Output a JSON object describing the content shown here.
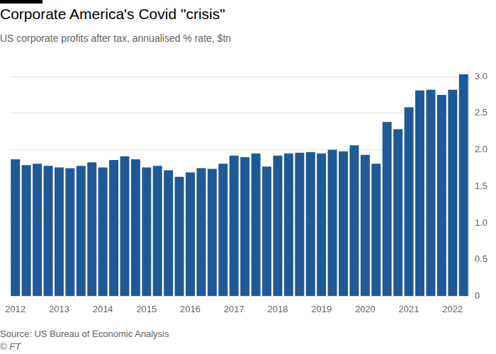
{
  "chart_data": {
    "type": "bar",
    "title": "Corporate America's Covid \"crisis\"",
    "subtitle": "US corporate profits after tax, annualised % rate, $tn",
    "source": "Source: US Bureau of Economic Analysis",
    "credit": "© FT",
    "categories": [
      "2012",
      null,
      null,
      null,
      "2013",
      null,
      null,
      null,
      "2014",
      null,
      null,
      null,
      "2015",
      null,
      null,
      null,
      "2016",
      null,
      null,
      null,
      "2017",
      null,
      null,
      null,
      "2018",
      null,
      null,
      null,
      "2019",
      null,
      null,
      null,
      "2020",
      null,
      null,
      null,
      "2021",
      null,
      null,
      null,
      "2022",
      null
    ],
    "values": [
      1.87,
      1.79,
      1.81,
      1.78,
      1.76,
      1.75,
      1.78,
      1.83,
      1.76,
      1.86,
      1.91,
      1.87,
      1.76,
      1.78,
      1.72,
      1.63,
      1.69,
      1.75,
      1.74,
      1.81,
      1.92,
      1.9,
      1.95,
      1.77,
      1.92,
      1.95,
      1.96,
      1.97,
      1.95,
      2.0,
      1.98,
      2.06,
      1.93,
      1.81,
      2.38,
      2.28,
      2.58,
      2.81,
      2.82,
      2.75,
      2.82,
      3.03
    ],
    "color": "#1f5a96",
    "ylim": [
      0,
      3.1
    ],
    "yticks": [
      0,
      0.5,
      {
        "value": 1,
        "label": "1.0"
      },
      1.5,
      {
        "value": 2,
        "label": "2.0"
      },
      2.5,
      {
        "value": 3,
        "label": "3.0"
      }
    ],
    "grid": true
  }
}
